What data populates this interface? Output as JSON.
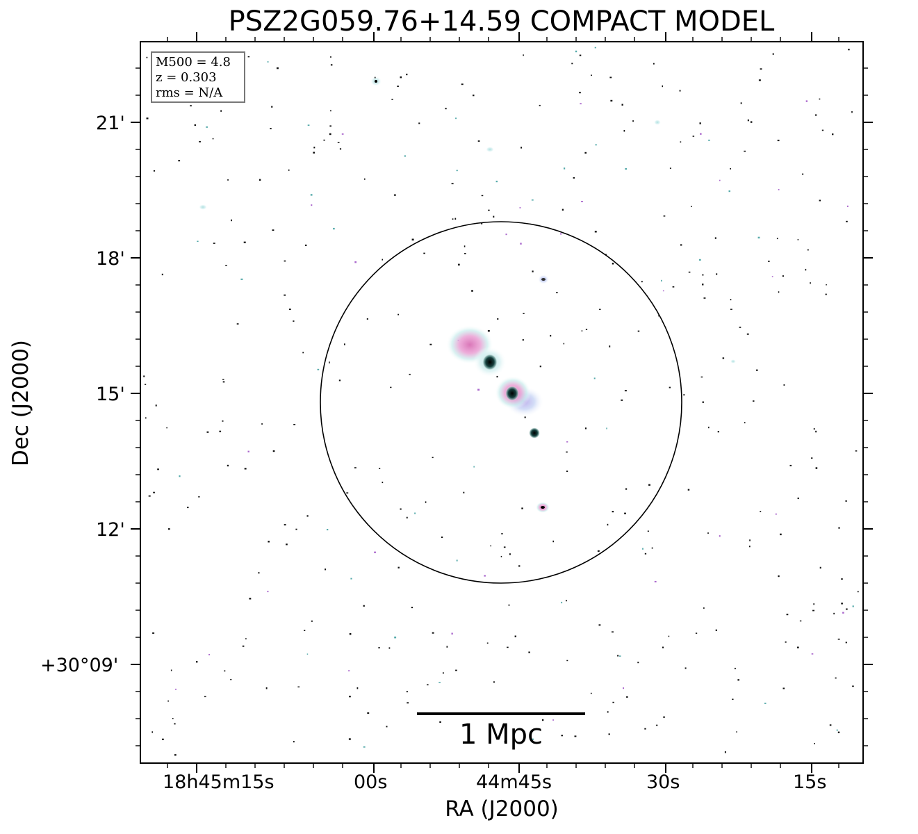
{
  "title": "PSZ2G059.76+14.59 COMPACT MODEL",
  "axes": {
    "xlabel": "RA (J2000)",
    "ylabel": "Dec (J2000)",
    "x_ticks": [
      "18h45m15s",
      "00s",
      "44m45s",
      "30s",
      "15s"
    ],
    "y_ticks": [
      "21'",
      "18'",
      "15'",
      "12'",
      "+30°09'"
    ]
  },
  "info": {
    "mass": "M500 = 4.8",
    "redshift": "z = 0.303",
    "rms": "rms = N/A"
  },
  "scale_bar": {
    "label": "1 Mpc"
  },
  "colors": {
    "source_core": "#0d2a2a",
    "source_halo_pink": "#e48bc8",
    "source_halo_cyan": "#c9ecec",
    "source_halo_blue": "#b8c7f0",
    "circle": "#000000"
  }
}
